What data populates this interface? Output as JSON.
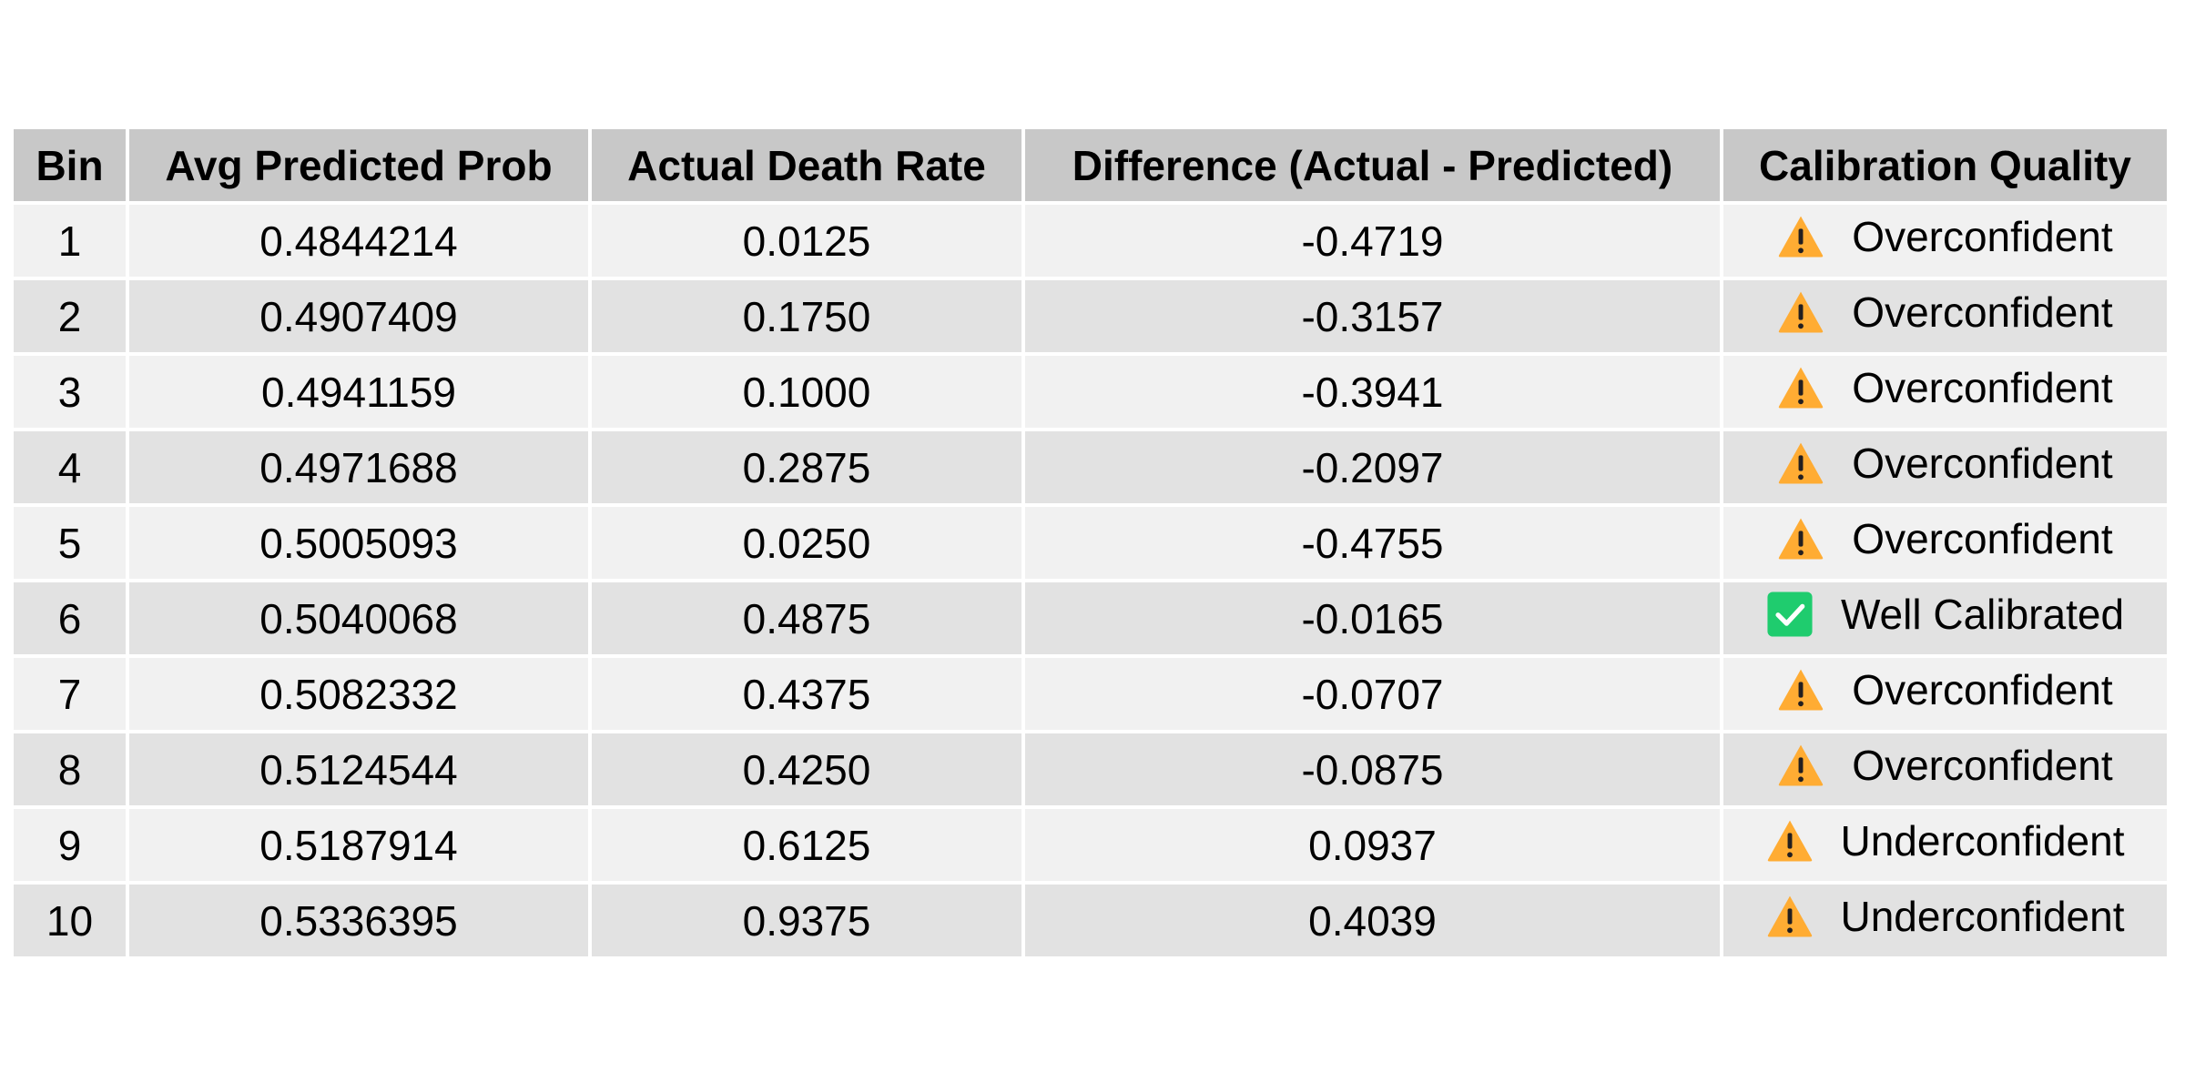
{
  "chart_data": {
    "type": "table",
    "columns": [
      "Bin",
      "Avg Predicted Prob",
      "Actual Death Rate",
      "Difference (Actual - Predicted)",
      "Calibration Quality"
    ],
    "rows": [
      {
        "bin": "1",
        "pred": "0.4844214",
        "rate": "0.0125",
        "diff": "-0.4719",
        "quality": "Overconfident",
        "icon": "warning-icon"
      },
      {
        "bin": "2",
        "pred": "0.4907409",
        "rate": "0.1750",
        "diff": "-0.3157",
        "quality": "Overconfident",
        "icon": "warning-icon"
      },
      {
        "bin": "3",
        "pred": "0.4941159",
        "rate": "0.1000",
        "diff": "-0.3941",
        "quality": "Overconfident",
        "icon": "warning-icon"
      },
      {
        "bin": "4",
        "pred": "0.4971688",
        "rate": "0.2875",
        "diff": "-0.2097",
        "quality": "Overconfident",
        "icon": "warning-icon"
      },
      {
        "bin": "5",
        "pred": "0.5005093",
        "rate": "0.0250",
        "diff": "-0.4755",
        "quality": "Overconfident",
        "icon": "warning-icon"
      },
      {
        "bin": "6",
        "pred": "0.5040068",
        "rate": "0.4875",
        "diff": "-0.0165",
        "quality": "Well Calibrated",
        "icon": "check-icon"
      },
      {
        "bin": "7",
        "pred": "0.5082332",
        "rate": "0.4375",
        "diff": "-0.0707",
        "quality": "Overconfident",
        "icon": "warning-icon"
      },
      {
        "bin": "8",
        "pred": "0.5124544",
        "rate": "0.4250",
        "diff": "-0.0875",
        "quality": "Overconfident",
        "icon": "warning-icon"
      },
      {
        "bin": "9",
        "pred": "0.5187914",
        "rate": "0.6125",
        "diff": "0.0937",
        "quality": "Underconfident",
        "icon": "warning-icon"
      },
      {
        "bin": "10",
        "pred": "0.5336395",
        "rate": "0.9375",
        "diff": "0.4039",
        "quality": "Underconfident",
        "icon": "warning-icon"
      }
    ]
  },
  "colors": {
    "header_bg": "#c8c8c8",
    "row_light": "#f1f1f1",
    "row_dark": "#e2e2e2",
    "warning": "#ffac33",
    "check": "#1fcc6e"
  }
}
